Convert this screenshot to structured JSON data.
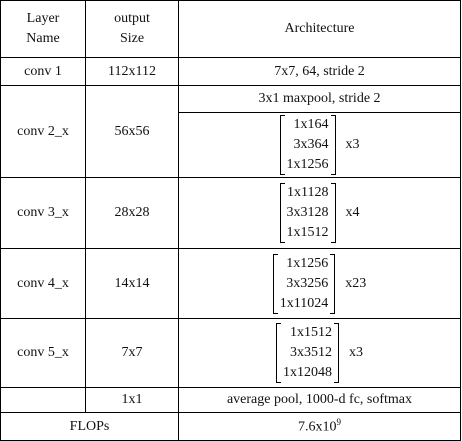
{
  "table": {
    "header": [
      "Layer Name",
      "output Size",
      "Architecture"
    ],
    "rows": [
      {
        "layer": "conv 1",
        "size": "112x112",
        "arch": "7x7, 64, stride 2"
      },
      {
        "layer": "conv 2_x",
        "size": "56x56",
        "pre": "3x1 maxpool, stride 2",
        "block": [
          "1x164",
          "3x364",
          "1x1256"
        ],
        "repeat": "x3"
      },
      {
        "layer": "conv 3_x",
        "size": "28x28",
        "block": [
          "1x1128",
          "3x3128",
          "1x1512"
        ],
        "repeat": "x4"
      },
      {
        "layer": "conv 4_x",
        "size": "14x14",
        "block": [
          "1x1256",
          "3x3256",
          "1x11024"
        ],
        "repeat": "x23"
      },
      {
        "layer": "conv 5_x",
        "size": "7x7",
        "block": [
          "1x1512",
          "3x3512",
          "1x12048"
        ],
        "repeat": "x3"
      },
      {
        "size": "1x1",
        "arch": "average pool, 1000-d fc, softmax"
      }
    ],
    "flops": {
      "label": "FLOPs",
      "base": "7.6x10",
      "exponent": "9"
    }
  }
}
